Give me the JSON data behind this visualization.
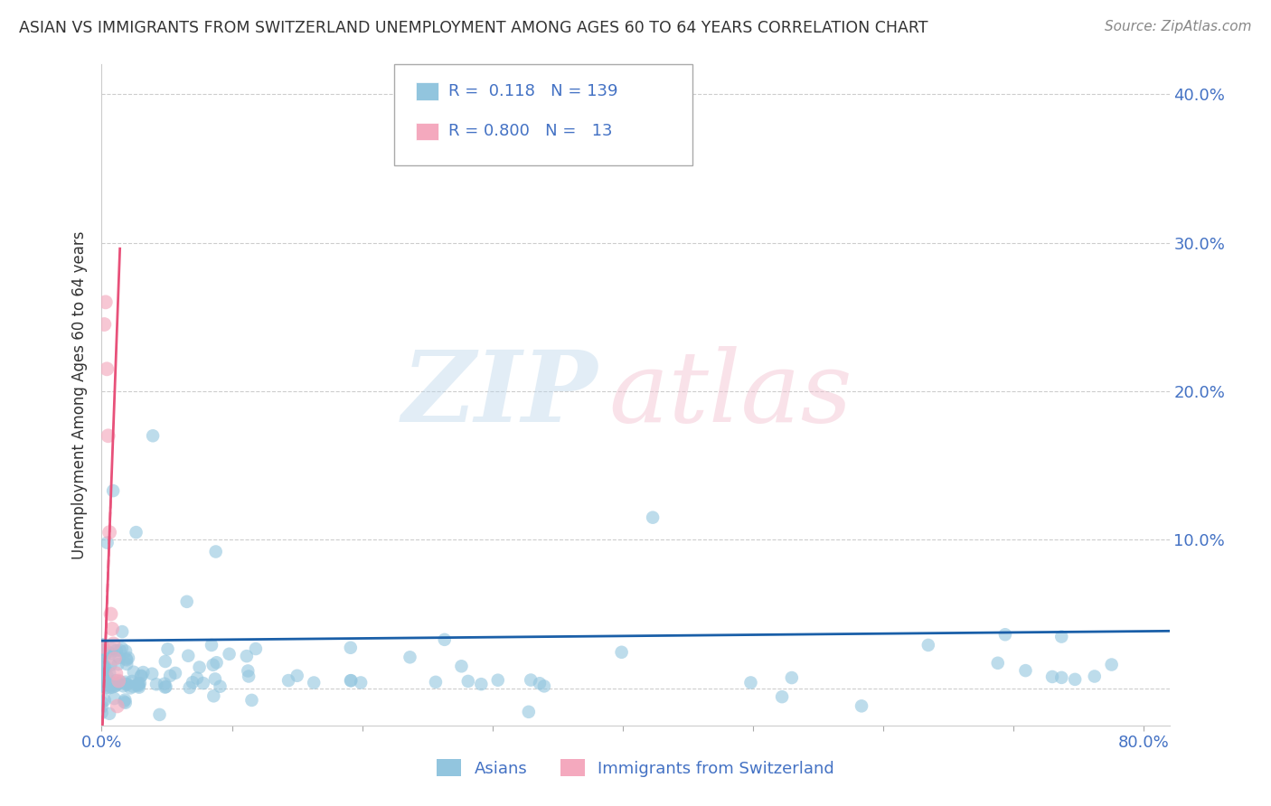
{
  "title": "ASIAN VS IMMIGRANTS FROM SWITZERLAND UNEMPLOYMENT AMONG AGES 60 TO 64 YEARS CORRELATION CHART",
  "source": "Source: ZipAtlas.com",
  "ylabel": "Unemployment Among Ages 60 to 64 years",
  "xlim": [
    0.0,
    0.82
  ],
  "ylim": [
    -0.025,
    0.42
  ],
  "yticks": [
    0.0,
    0.1,
    0.2,
    0.3,
    0.4
  ],
  "ytick_labels_right": [
    "",
    "10.0%",
    "20.0%",
    "30.0%",
    "40.0%"
  ],
  "xtick_vals": [
    0.0,
    0.1,
    0.2,
    0.3,
    0.4,
    0.5,
    0.6,
    0.7,
    0.8
  ],
  "xtick_labels": [
    "0.0%",
    "",
    "",
    "",
    "",
    "",
    "",
    "",
    "80.0%"
  ],
  "blue_color": "#92c5de",
  "pink_color": "#f4a9be",
  "blue_line_color": "#1a5fa8",
  "pink_line_color": "#e8517a",
  "legend_r_blue": "0.118",
  "legend_n_blue": "139",
  "legend_r_pink": "0.800",
  "legend_n_pink": "13",
  "background_color": "#ffffff",
  "grid_color": "#c8c8c8",
  "title_color": "#333333",
  "axis_color": "#4472c4",
  "tick_color": "#4472c4",
  "ylabel_color": "#333333"
}
